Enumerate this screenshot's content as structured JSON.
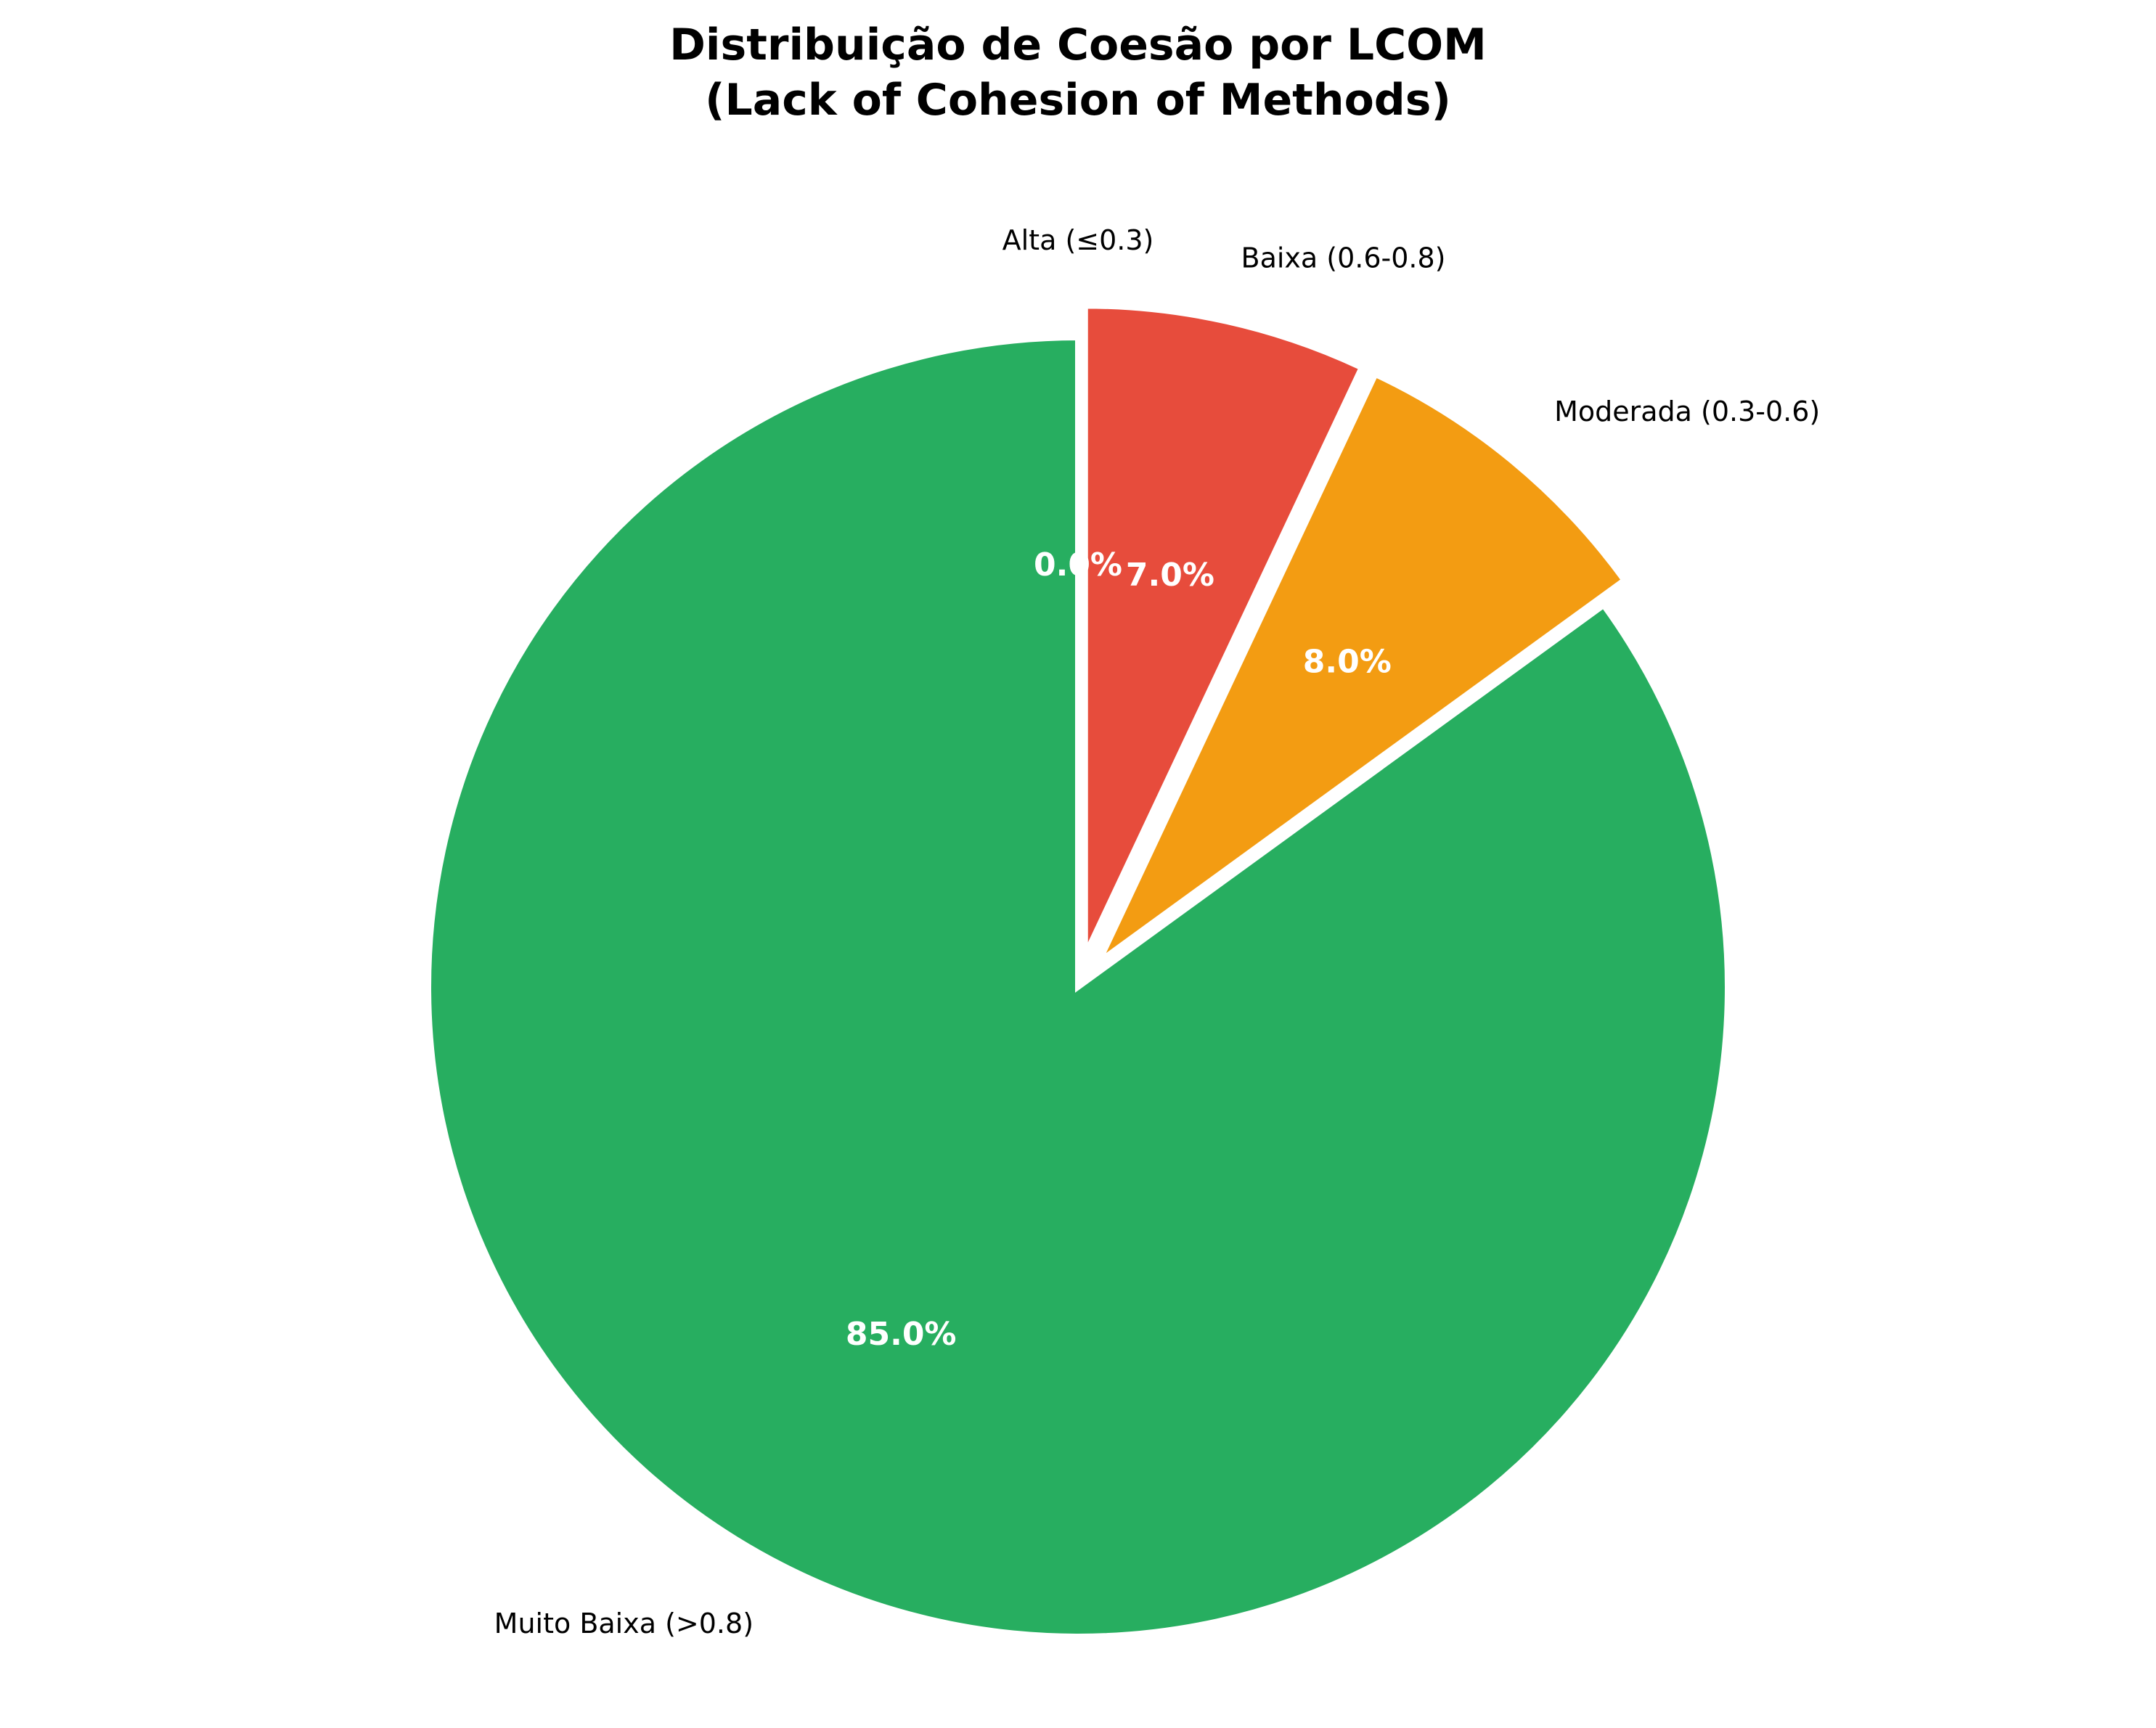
{
  "chart_data": {
    "type": "pie",
    "title_lines": [
      "Distribuição de Coesão por LCOM",
      "(Lack of Cohesion of Methods)"
    ],
    "start_angle_deg": 90,
    "direction": "clockwise",
    "slices": [
      {
        "label": "Alta (≤0.3)",
        "value": 0.0,
        "pct_label": "0.0%",
        "color": "#3498db",
        "exploded": true
      },
      {
        "label": "Baixa (0.6-0.8)",
        "value": 7.0,
        "pct_label": "7.0%",
        "color": "#e74c3c",
        "exploded": true
      },
      {
        "label": "Moderada (0.3-0.6)",
        "value": 8.0,
        "pct_label": "8.0%",
        "color": "#f39c12",
        "exploded": true
      },
      {
        "label": "Muito Baixa (>0.8)",
        "value": 85.0,
        "pct_label": "85.0%",
        "color": "#27ae60",
        "exploded": false
      }
    ],
    "edge_color": "#ffffff"
  }
}
